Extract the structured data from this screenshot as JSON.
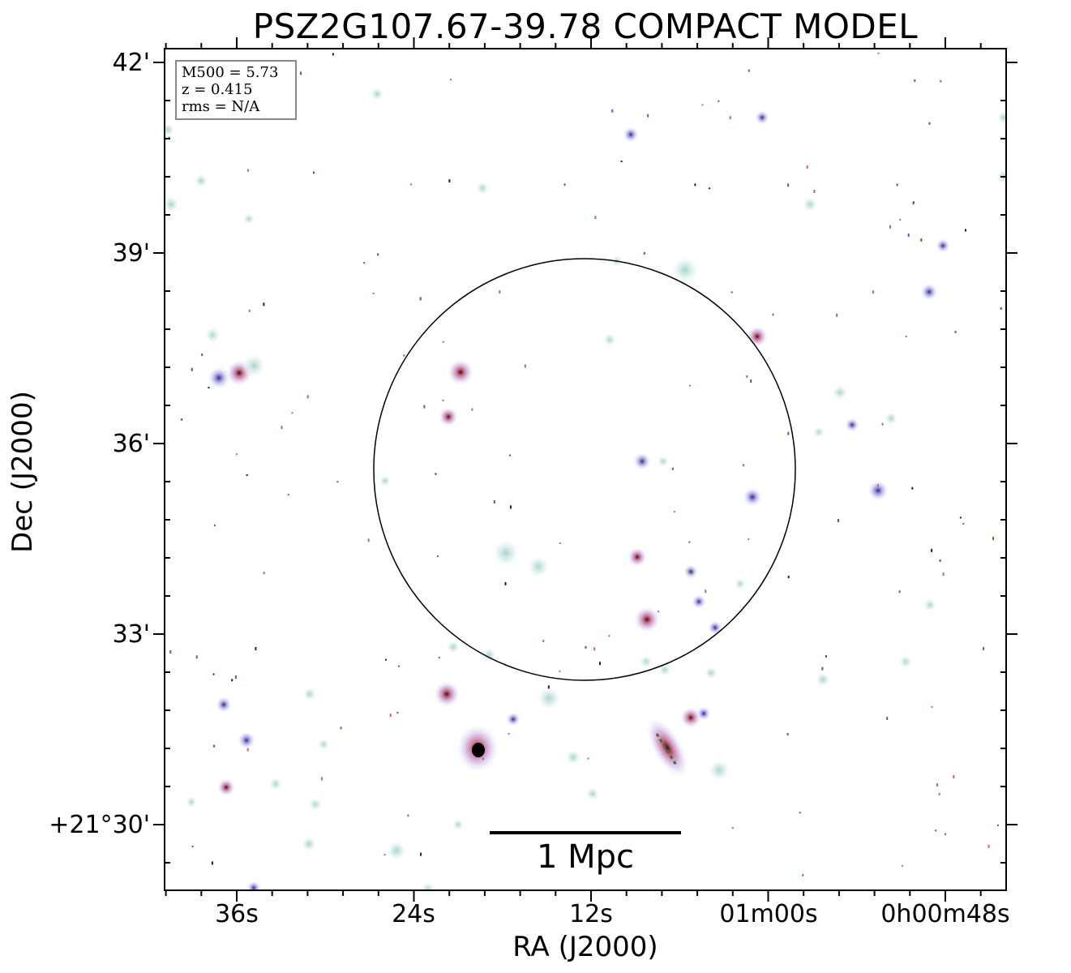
{
  "figure": {
    "title": "PSZ2G107.67-39.78 COMPACT MODEL",
    "xlabel": "RA (J2000)",
    "ylabel": "Dec (J2000)",
    "x_ticks": [
      "36s",
      "24s",
      "12s",
      "01m00s",
      "0h00m48s"
    ],
    "y_ticks": [
      "42'",
      "39'",
      "36'",
      "33'",
      "+21°30'"
    ],
    "info": {
      "mass": "M500 = 5.73",
      "redshift": "z = 0.415",
      "rms": "rms = N/A"
    },
    "scale_bar_label": "1 Mpc",
    "colors": {
      "halo": "#cfe8e6",
      "mid": "#b7a6e0",
      "core": "#d46a8a",
      "green": "#3a7a2a",
      "frame": "#000000"
    }
  }
}
